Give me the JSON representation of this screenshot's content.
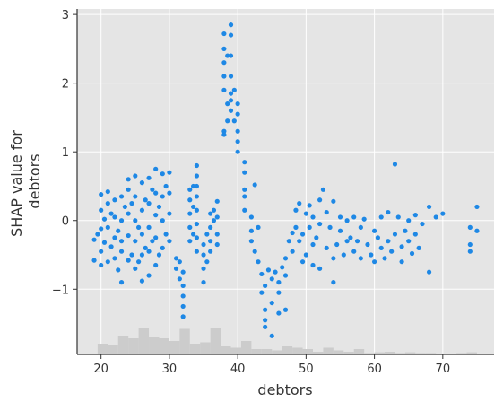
{
  "chart_data": {
    "type": "scatter",
    "title": "",
    "xlabel": "debtors",
    "ylabel_lines": [
      "SHAP value for",
      "debtors"
    ],
    "xlim": [
      16.5,
      77.5
    ],
    "ylim": [
      -1.95,
      3.08
    ],
    "x_ticks": [
      {
        "value": 20,
        "label": "20"
      },
      {
        "value": 30,
        "label": "30"
      },
      {
        "value": 40,
        "label": "40"
      },
      {
        "value": 50,
        "label": "50"
      },
      {
        "value": 60,
        "label": "60"
      },
      {
        "value": 70,
        "label": "70"
      }
    ],
    "y_ticks": [
      {
        "value": -1,
        "label": "−1"
      },
      {
        "value": 0,
        "label": "0"
      },
      {
        "value": 1,
        "label": "1"
      },
      {
        "value": 2,
        "label": "2"
      },
      {
        "value": 3,
        "label": "3"
      }
    ],
    "grid": true,
    "colors": {
      "background": "#e5e5e5",
      "grid": "#ffffff",
      "point": "#1e88e5",
      "histogram": "#cccccc",
      "axis": "#333333"
    },
    "histogram": [
      {
        "x0": 16.5,
        "x1": 18.0,
        "count": 0
      },
      {
        "x0": 18.0,
        "x1": 19.5,
        "count": 0
      },
      {
        "x0": 19.5,
        "x1": 21.0,
        "count": 4
      },
      {
        "x0": 21.0,
        "x1": 22.5,
        "count": 3.5
      },
      {
        "x0": 22.5,
        "x1": 24.0,
        "count": 7
      },
      {
        "x0": 24.0,
        "x1": 25.5,
        "count": 6
      },
      {
        "x0": 25.5,
        "x1": 27.0,
        "count": 10
      },
      {
        "x0": 27.0,
        "x1": 28.5,
        "count": 6.5
      },
      {
        "x0": 28.5,
        "x1": 30.0,
        "count": 6
      },
      {
        "x0": 30.0,
        "x1": 31.5,
        "count": 5
      },
      {
        "x0": 31.5,
        "x1": 33.0,
        "count": 9.5
      },
      {
        "x0": 33.0,
        "x1": 34.5,
        "count": 4
      },
      {
        "x0": 34.5,
        "x1": 36.0,
        "count": 4.5
      },
      {
        "x0": 36.0,
        "x1": 37.5,
        "count": 10
      },
      {
        "x0": 37.5,
        "x1": 39.0,
        "count": 3
      },
      {
        "x0": 39.0,
        "x1": 40.5,
        "count": 2.5
      },
      {
        "x0": 40.5,
        "x1": 42.0,
        "count": 5
      },
      {
        "x0": 42.0,
        "x1": 43.5,
        "count": 2
      },
      {
        "x0": 43.5,
        "x1": 45.0,
        "count": 2
      },
      {
        "x0": 45.0,
        "x1": 46.5,
        "count": 1.5
      },
      {
        "x0": 46.5,
        "x1": 48.0,
        "count": 3
      },
      {
        "x0": 48.0,
        "x1": 49.5,
        "count": 2.5
      },
      {
        "x0": 49.5,
        "x1": 51.0,
        "count": 2
      },
      {
        "x0": 51.0,
        "x1": 52.5,
        "count": 1
      },
      {
        "x0": 52.5,
        "x1": 54.0,
        "count": 2.5
      },
      {
        "x0": 54.0,
        "x1": 55.5,
        "count": 1.5
      },
      {
        "x0": 55.5,
        "x1": 57.0,
        "count": 1
      },
      {
        "x0": 57.0,
        "x1": 58.5,
        "count": 2
      },
      {
        "x0": 58.5,
        "x1": 60.0,
        "count": 0.5
      },
      {
        "x0": 60.0,
        "x1": 61.5,
        "count": 0.8
      },
      {
        "x0": 61.5,
        "x1": 63.0,
        "count": 1
      },
      {
        "x0": 63.0,
        "x1": 64.5,
        "count": 0.5
      },
      {
        "x0": 64.5,
        "x1": 66.0,
        "count": 0.8
      },
      {
        "x0": 66.0,
        "x1": 67.5,
        "count": 0.5
      },
      {
        "x0": 67.5,
        "x1": 69.0,
        "count": 0.5
      },
      {
        "x0": 69.0,
        "x1": 70.5,
        "count": 0.3
      },
      {
        "x0": 70.5,
        "x1": 72.0,
        "count": 0
      },
      {
        "x0": 72.0,
        "x1": 73.5,
        "count": 0.5
      },
      {
        "x0": 73.5,
        "x1": 75.0,
        "count": 0.8
      },
      {
        "x0": 75.0,
        "x1": 76.5,
        "count": 0
      }
    ],
    "points": [
      [
        19,
        -0.28
      ],
      [
        19,
        -0.58
      ],
      [
        19.5,
        -0.2
      ],
      [
        20,
        -0.65
      ],
      [
        20,
        -0.12
      ],
      [
        20,
        0.15
      ],
      [
        20,
        0.38
      ],
      [
        20,
        -0.45
      ],
      [
        20.5,
        -0.32
      ],
      [
        20.5,
        0.02
      ],
      [
        21,
        -0.6
      ],
      [
        21,
        0.25
      ],
      [
        21,
        0.42
      ],
      [
        21,
        -0.1
      ],
      [
        21.5,
        -0.38
      ],
      [
        21.5,
        0.1
      ],
      [
        22,
        -0.55
      ],
      [
        22,
        -0.25
      ],
      [
        22,
        0.05
      ],
      [
        22,
        0.3
      ],
      [
        22.5,
        -0.72
      ],
      [
        22.5,
        -0.15
      ],
      [
        23,
        -0.9
      ],
      [
        23,
        -0.45
      ],
      [
        23,
        0.0
      ],
      [
        23,
        0.35
      ],
      [
        23,
        -0.3
      ],
      [
        23.5,
        0.2
      ],
      [
        24,
        -0.58
      ],
      [
        24,
        -0.22
      ],
      [
        24,
        0.1
      ],
      [
        24,
        0.45
      ],
      [
        24,
        0.6
      ],
      [
        24.5,
        -0.5
      ],
      [
        24.5,
        0.25
      ],
      [
        25,
        -0.7
      ],
      [
        25,
        -0.3
      ],
      [
        25,
        0.0
      ],
      [
        25,
        0.35
      ],
      [
        25,
        0.65
      ],
      [
        25.5,
        -0.6
      ],
      [
        25.5,
        -0.1
      ],
      [
        26,
        -0.88
      ],
      [
        26,
        -0.5
      ],
      [
        26,
        -0.2
      ],
      [
        26,
        0.15
      ],
      [
        26,
        0.55
      ],
      [
        26.5,
        -0.4
      ],
      [
        26.5,
        0.3
      ],
      [
        27,
        -0.8
      ],
      [
        27,
        -0.45
      ],
      [
        27,
        -0.1
      ],
      [
        27,
        0.25
      ],
      [
        27,
        0.62
      ],
      [
        27.5,
        -0.3
      ],
      [
        27.5,
        0.45
      ],
      [
        28,
        -0.65
      ],
      [
        28,
        -0.25
      ],
      [
        28,
        0.08
      ],
      [
        28,
        0.4
      ],
      [
        28,
        0.75
      ],
      [
        28.5,
        -0.5
      ],
      [
        28.5,
        0.2
      ],
      [
        29,
        -0.4
      ],
      [
        29,
        0.0
      ],
      [
        29,
        0.35
      ],
      [
        29,
        0.68
      ],
      [
        29.5,
        -0.2
      ],
      [
        29.5,
        0.5
      ],
      [
        30,
        -0.3
      ],
      [
        30,
        0.1
      ],
      [
        30,
        0.4
      ],
      [
        30,
        0.7
      ],
      [
        31,
        -0.7
      ],
      [
        31,
        -0.55
      ],
      [
        31.5,
        -0.85
      ],
      [
        31.5,
        -0.6
      ],
      [
        32,
        -0.95
      ],
      [
        32,
        -1.1
      ],
      [
        32,
        -1.25
      ],
      [
        32,
        -1.4
      ],
      [
        32,
        -0.75
      ],
      [
        33,
        0.45
      ],
      [
        33,
        0.3
      ],
      [
        33,
        0.1
      ],
      [
        33,
        -0.1
      ],
      [
        33,
        -0.3
      ],
      [
        33.5,
        0.5
      ],
      [
        33.5,
        0.2
      ],
      [
        33.5,
        -0.2
      ],
      [
        34,
        0.8
      ],
      [
        34,
        0.65
      ],
      [
        34,
        0.5
      ],
      [
        34,
        0.35
      ],
      [
        34,
        0.15
      ],
      [
        34,
        -0.05
      ],
      [
        34,
        -0.25
      ],
      [
        34,
        -0.45
      ],
      [
        35,
        -0.9
      ],
      [
        35,
        -0.7
      ],
      [
        35,
        -0.5
      ],
      [
        35,
        -0.35
      ],
      [
        35.5,
        -0.6
      ],
      [
        35.5,
        -0.2
      ],
      [
        36,
        0.1
      ],
      [
        36,
        -0.1
      ],
      [
        36,
        -0.3
      ],
      [
        36,
        -0.45
      ],
      [
        36.5,
        0.15
      ],
      [
        36.5,
        0.0
      ],
      [
        37,
        0.28
      ],
      [
        37,
        0.05
      ],
      [
        37,
        -0.2
      ],
      [
        37,
        -0.35
      ],
      [
        38,
        2.72
      ],
      [
        38,
        2.5
      ],
      [
        38,
        2.3
      ],
      [
        38,
        2.1
      ],
      [
        38,
        1.9
      ],
      [
        38,
        1.3
      ],
      [
        38,
        1.25
      ],
      [
        38.5,
        2.4
      ],
      [
        38.5,
        1.7
      ],
      [
        38.5,
        1.45
      ],
      [
        39,
        2.85
      ],
      [
        39,
        2.7
      ],
      [
        39,
        2.4
      ],
      [
        39,
        2.1
      ],
      [
        39,
        1.85
      ],
      [
        39,
        1.75
      ],
      [
        39,
        1.6
      ],
      [
        39.5,
        1.9
      ],
      [
        39.5,
        1.45
      ],
      [
        40,
        1.7
      ],
      [
        40,
        1.55
      ],
      [
        40,
        1.3
      ],
      [
        40,
        1.15
      ],
      [
        40,
        1.0
      ],
      [
        41,
        0.85
      ],
      [
        41,
        0.7
      ],
      [
        41,
        0.45
      ],
      [
        41,
        0.15
      ],
      [
        41,
        0.35
      ],
      [
        42,
        0.05
      ],
      [
        42,
        -0.15
      ],
      [
        42,
        -0.3
      ],
      [
        42.5,
        0.52
      ],
      [
        42.5,
        -0.45
      ],
      [
        43,
        -0.1
      ],
      [
        43,
        -0.6
      ],
      [
        43.5,
        -1.05
      ],
      [
        43.5,
        -0.78
      ],
      [
        44,
        -1.3
      ],
      [
        44,
        -1.45
      ],
      [
        44,
        -1.55
      ],
      [
        44,
        -0.95
      ],
      [
        44.5,
        -0.72
      ],
      [
        45,
        -1.2
      ],
      [
        45,
        -1.68
      ],
      [
        45,
        -0.85
      ],
      [
        45.5,
        -0.75
      ],
      [
        46,
        -1.05
      ],
      [
        46,
        -1.35
      ],
      [
        46,
        -0.9
      ],
      [
        46.5,
        -0.68
      ],
      [
        47,
        -1.3
      ],
      [
        47,
        -0.8
      ],
      [
        47,
        -0.55
      ],
      [
        47.5,
        -0.3
      ],
      [
        48,
        -0.18
      ],
      [
        48,
        -0.45
      ],
      [
        48.5,
        0.15
      ],
      [
        48.5,
        -0.1
      ],
      [
        49,
        0.25
      ],
      [
        49,
        -0.3
      ],
      [
        49.5,
        -0.6
      ],
      [
        49.5,
        -0.2
      ],
      [
        50,
        0.1
      ],
      [
        50,
        -0.5
      ],
      [
        50.5,
        0.22
      ],
      [
        50.5,
        -0.1
      ],
      [
        51,
        0.05
      ],
      [
        51,
        -0.35
      ],
      [
        51,
        -0.65
      ],
      [
        51.5,
        -0.25
      ],
      [
        52,
        0.3
      ],
      [
        52,
        -0.05
      ],
      [
        52,
        -0.7
      ],
      [
        52.5,
        0.45
      ],
      [
        53,
        -0.4
      ],
      [
        53,
        0.12
      ],
      [
        53.5,
        -0.1
      ],
      [
        54,
        0.28
      ],
      [
        54,
        -0.55
      ],
      [
        54,
        -0.9
      ],
      [
        54.5,
        -0.35
      ],
      [
        55,
        0.05
      ],
      [
        55,
        -0.15
      ],
      [
        55.5,
        -0.5
      ],
      [
        56,
        -0.3
      ],
      [
        56,
        0.0
      ],
      [
        56.5,
        -0.25
      ],
      [
        57,
        -0.45
      ],
      [
        57,
        0.05
      ],
      [
        57.5,
        -0.3
      ],
      [
        58,
        -0.55
      ],
      [
        58,
        -0.1
      ],
      [
        58.5,
        0.02
      ],
      [
        59,
        -0.35
      ],
      [
        59.5,
        -0.5
      ],
      [
        60,
        -0.15
      ],
      [
        60,
        -0.6
      ],
      [
        60.5,
        -0.25
      ],
      [
        61,
        -0.4
      ],
      [
        61,
        0.05
      ],
      [
        61.5,
        -0.55
      ],
      [
        62,
        -0.3
      ],
      [
        62,
        0.12
      ],
      [
        62.5,
        -0.45
      ],
      [
        63,
        0.82
      ],
      [
        63,
        -0.2
      ],
      [
        63.5,
        0.05
      ],
      [
        64,
        -0.38
      ],
      [
        64,
        -0.6
      ],
      [
        64.5,
        -0.15
      ],
      [
        65,
        -0.3
      ],
      [
        65,
        0.0
      ],
      [
        65.5,
        -0.48
      ],
      [
        66,
        -0.2
      ],
      [
        66,
        0.08
      ],
      [
        66.5,
        -0.4
      ],
      [
        67,
        -0.05
      ],
      [
        68,
        0.2
      ],
      [
        68,
        -0.75
      ],
      [
        69,
        0.05
      ],
      [
        70,
        0.1
      ],
      [
        74,
        -0.1
      ],
      [
        74,
        -0.35
      ],
      [
        74,
        -0.45
      ],
      [
        75,
        0.2
      ],
      [
        75,
        -0.15
      ]
    ]
  }
}
